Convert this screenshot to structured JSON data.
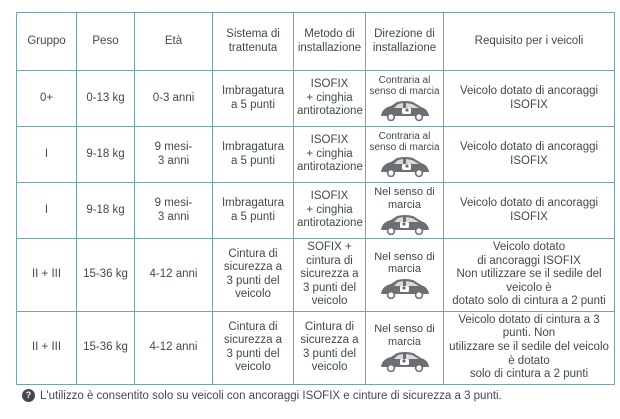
{
  "header": {
    "gruppo": "Gruppo",
    "peso": "Peso",
    "eta": "Età",
    "sistema": "Sistema di\ntrattenuta",
    "metodo": "Metodo di\ninstallazione",
    "direzione": "Direzione di\ninstallazione",
    "requisito": "Requisito per i veicoli"
  },
  "rows": [
    {
      "gruppo": "0+",
      "peso": "0-13 kg",
      "eta": "0-3 anni",
      "sistema": "Imbragatura\na 5 punti",
      "metodo": "ISOFIX\n+ cinghia\nantirotazione",
      "direzione": "Contraria al\nsenso di marcia",
      "icon": "rear-facing-car-seat-icon",
      "requisito": "Veicolo dotato di ancoraggi ISOFIX"
    },
    {
      "gruppo": "I",
      "peso": "9-18 kg",
      "eta": "9 mesi-\n3 anni",
      "sistema": "Imbragatura\na 5 punti",
      "metodo": "ISOFIX\n+ cinghia\nantirotazione",
      "direzione": "Contraria al\nsenso di marcia",
      "icon": "rear-facing-car-seat-icon",
      "requisito": "Veicolo dotato di ancoraggi ISOFIX"
    },
    {
      "gruppo": "I",
      "peso": "9-18 kg",
      "eta": "9 mesi-\n3 anni",
      "sistema": "Imbragatura\na 5 punti",
      "metodo": "ISOFIX\n+ cinghia\nantirotazione",
      "direzione": "Nel senso di\nmarcia",
      "icon": "forward-facing-car-seat-icon",
      "requisito": "Veicolo dotato di ancoraggi ISOFIX"
    },
    {
      "gruppo": "II + III",
      "peso": "15-36 kg",
      "eta": "4-12 anni",
      "sistema": "Cintura di\nsicurezza a\n3 punti del\nveicolo",
      "metodo": "SOFIX +\ncintura di\nsicurezza a\n3 punti del\nveicolo",
      "direzione": "Nel senso di\nmarcia",
      "icon": "forward-facing-car-seat-icon",
      "requisito": "Veicolo dotato\ndi ancoraggi ISOFIX\nNon utilizzare se il sedile del veicolo è\ndotato solo di cintura a 2 punti"
    },
    {
      "gruppo": "II + III",
      "peso": "15-36 kg",
      "eta": "4-12 anni",
      "sistema": "Cintura di\nsicurezza a\n3 punti del\nveicolo",
      "metodo": "Cintura di\nsicurezza a\n3 punti del\nveicolo",
      "direzione": "Nel senso di\nmarcia",
      "icon": "forward-facing-car-seat-icon",
      "requisito": "Veicolo dotato di cintura a 3 punti. Non\nutilizzare se il sedile del veicolo è dotato\nsolo di cintura a 2 punti"
    }
  ],
  "footnote": {
    "symbol": "?",
    "text": "L'utilizzo è consentito solo su veicoli con ancoraggi ISOFIX e cinture di sicurezza a 3 punti."
  },
  "colors": {
    "border": "#7aa1ad",
    "text": "#3f4a50",
    "icon": "#6b6f73"
  }
}
